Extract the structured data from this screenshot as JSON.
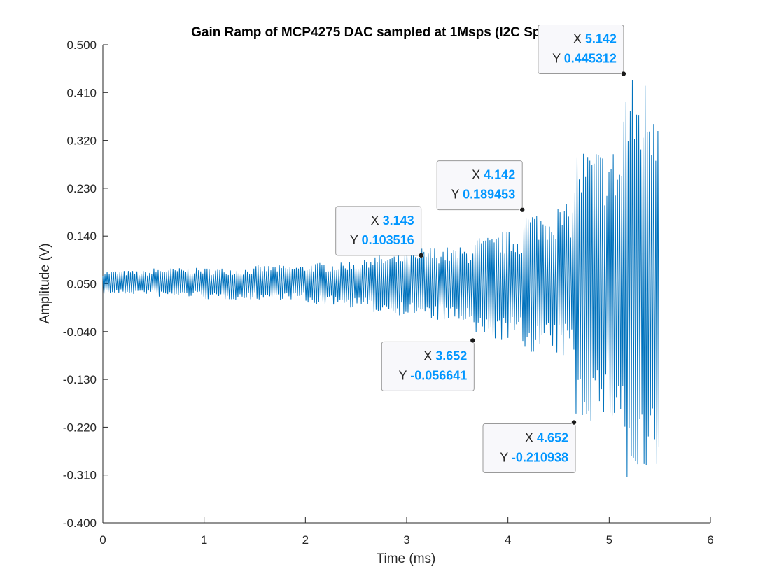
{
  "chart_data": {
    "type": "line",
    "title": "Gain Ramp of MCP4275 DAC sampled at 1Msps (I2C Speed 100kbps)",
    "xlabel": "Time (ms)",
    "ylabel": "Amplitude (V)",
    "xlim": [
      0,
      6
    ],
    "ylim": [
      -0.4,
      0.5
    ],
    "xticks": [
      0,
      1,
      2,
      3,
      4,
      5,
      6
    ],
    "xtick_labels": [
      "0",
      "1",
      "2",
      "3",
      "4",
      "5",
      "6"
    ],
    "yticks": [
      0.5,
      0.41,
      0.32,
      0.23,
      0.14,
      0.05,
      -0.04,
      -0.13,
      -0.22,
      -0.31,
      -0.4
    ],
    "ytick_labels": [
      "0.500",
      "0.410",
      "0.320",
      "0.230",
      "0.140",
      "0.050",
      "-0.040",
      "-0.130",
      "-0.220",
      "-0.310",
      "-0.400"
    ],
    "grid": false,
    "series": [
      {
        "color": "#0072BD",
        "center": 0.05,
        "envelope": [
          {
            "x": 0.0,
            "upper": 0.075,
            "lower": 0.03
          },
          {
            "x": 0.5,
            "upper": 0.08,
            "lower": 0.025
          },
          {
            "x": 1.0,
            "upper": 0.08,
            "lower": 0.02
          },
          {
            "x": 1.5,
            "upper": 0.085,
            "lower": 0.02
          },
          {
            "x": 2.0,
            "upper": 0.09,
            "lower": 0.01
          },
          {
            "x": 2.4,
            "upper": 0.095,
            "lower": 0.005
          },
          {
            "x": 2.6,
            "upper": 0.105,
            "lower": -0.005
          },
          {
            "x": 2.9,
            "upper": 0.11,
            "lower": -0.01
          },
          {
            "x": 3.143,
            "upper": 0.12,
            "lower": -0.02
          },
          {
            "x": 3.4,
            "upper": 0.12,
            "lower": -0.025
          },
          {
            "x": 3.652,
            "upper": 0.14,
            "lower": -0.056641
          },
          {
            "x": 3.9,
            "upper": 0.15,
            "lower": -0.058
          },
          {
            "x": 4.142,
            "upper": 0.189453,
            "lower": -0.08
          },
          {
            "x": 4.4,
            "upper": 0.2,
            "lower": -0.09
          },
          {
            "x": 4.652,
            "upper": 0.31,
            "lower": -0.210938
          },
          {
            "x": 5.0,
            "upper": 0.31,
            "lower": -0.215
          },
          {
            "x": 5.142,
            "upper": 0.445312,
            "lower": -0.355
          },
          {
            "x": 5.5,
            "upper": 0.455,
            "lower": -0.36
          }
        ],
        "x_end": 5.5
      }
    ],
    "annotations": [
      {
        "x": 5.142,
        "y": 0.445312,
        "x_label": "X",
        "x_value": "5.142",
        "y_label": "Y",
        "y_value": "0.445312",
        "placement": "left"
      },
      {
        "x": 4.142,
        "y": 0.189453,
        "x_label": "X",
        "x_value": "4.142",
        "y_label": "Y",
        "y_value": "0.189453",
        "placement": "left"
      },
      {
        "x": 3.143,
        "y": 0.103516,
        "x_label": "X",
        "x_value": "3.143",
        "y_label": "Y",
        "y_value": "0.103516",
        "placement": "left"
      },
      {
        "x": 3.652,
        "y": -0.056641,
        "x_label": "X",
        "x_value": "3.652",
        "y_label": "Y",
        "y_value": "-0.056641",
        "placement": "left"
      },
      {
        "x": 4.652,
        "y": -0.210938,
        "x_label": "X",
        "x_value": "4.652",
        "y_label": "Y",
        "y_value": "-0.210938",
        "placement": "left"
      }
    ],
    "annotation_value_color": "#0096FF"
  }
}
